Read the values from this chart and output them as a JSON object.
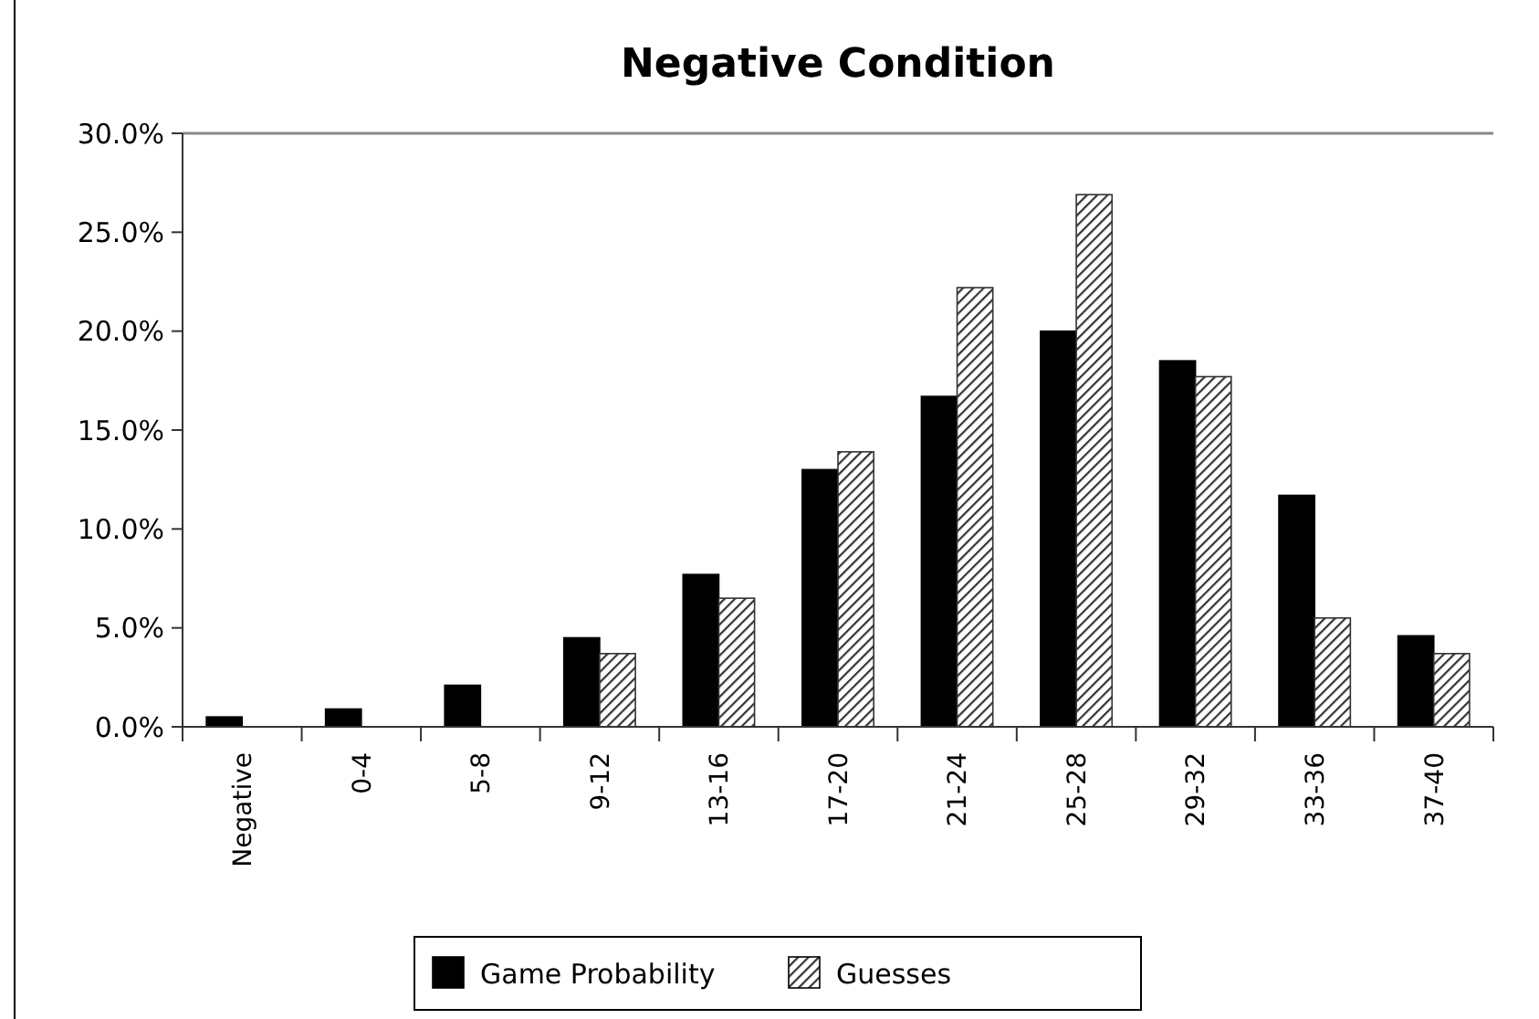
{
  "chart_data": {
    "type": "bar",
    "title": "Negative Condition",
    "categories": [
      "Negative",
      "0-4",
      "5-8",
      "9-12",
      "13-16",
      "17-20",
      "21-24",
      "25-28",
      "29-32",
      "33-36",
      "37-40"
    ],
    "series": [
      {
        "name": "Game Probability",
        "color": "#000000",
        "values": [
          0.5,
          0.9,
          2.1,
          4.5,
          7.7,
          13.0,
          16.7,
          20.0,
          18.5,
          11.7,
          4.6
        ]
      },
      {
        "name": "Guesses",
        "color": "#333333",
        "values": [
          0,
          0,
          0,
          3.7,
          6.5,
          13.9,
          22.2,
          26.9,
          17.7,
          5.5,
          3.7
        ]
      }
    ],
    "ylim": [
      0,
      30
    ],
    "yticks": [
      {
        "value": 0,
        "label": "0.0%"
      },
      {
        "value": 5,
        "label": "5.0%"
      },
      {
        "value": 10,
        "label": "10.0%"
      },
      {
        "value": 15,
        "label": "15.0%"
      },
      {
        "value": 20,
        "label": "20.0%"
      },
      {
        "value": 25,
        "label": "25.0%"
      },
      {
        "value": 30,
        "label": "30.0%"
      }
    ],
    "legend": "bottom",
    "grid": false
  }
}
